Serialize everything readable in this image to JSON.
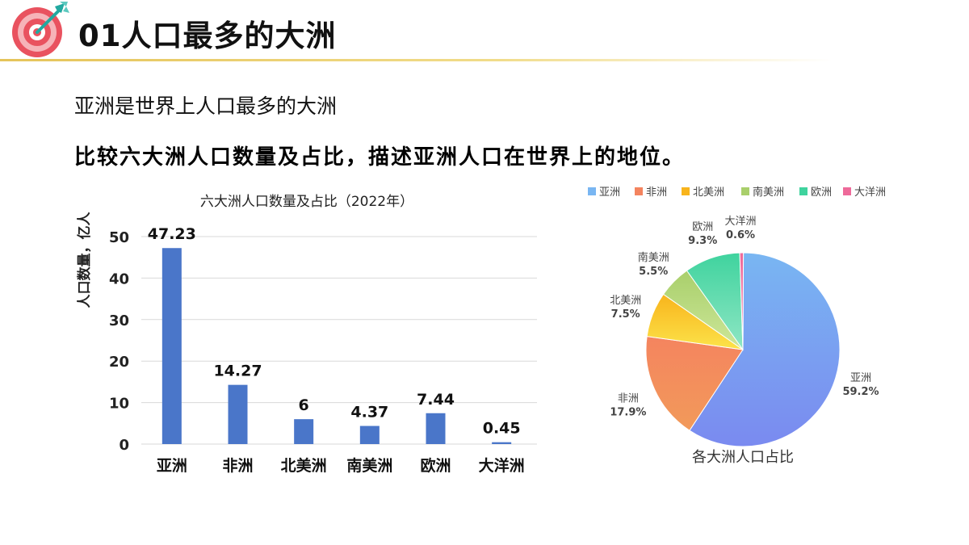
{
  "page": {
    "title": "01人口最多的大洲",
    "subtitle": "亚洲是世界上人口最多的大洲",
    "instruction": "比较六大洲人口数量及占比，描述亚洲人口在世界上的地位。"
  },
  "colors": {
    "bar": "#4a76c9",
    "header_rule": "#e5c45a",
    "target_red": "#e9525f",
    "target_pink": "#f6b3b8",
    "arrow": "#22a9a0"
  },
  "icons": {
    "header": "target-arrow-icon"
  },
  "chart_data": [
    {
      "type": "bar",
      "title": "六大洲人口数量及占比（2022年）",
      "xlabel": "",
      "ylabel": "人口数量，亿人",
      "categories": [
        "亚洲",
        "非洲",
        "北美洲",
        "南美洲",
        "欧洲",
        "大洋洲"
      ],
      "values": [
        47.23,
        14.27,
        6,
        4.37,
        7.44,
        0.45
      ],
      "value_labels": [
        "47.23",
        "14.27",
        "6",
        "4.37",
        "7.44",
        "0.45"
      ],
      "yticks": [
        "0",
        "10",
        "20",
        "30",
        "40",
        "50"
      ],
      "ylim": [
        0,
        50
      ],
      "grid": true
    },
    {
      "type": "pie",
      "title": "各大洲人口占比",
      "legend_position": "top",
      "categories": [
        "亚洲",
        "非洲",
        "北美洲",
        "南美洲",
        "欧洲",
        "大洋洲"
      ],
      "values": [
        59.2,
        17.9,
        7.5,
        5.5,
        9.3,
        0.6
      ],
      "value_labels": [
        "59.2%",
        "17.9%",
        "7.5%",
        "5.5%",
        "9.3%",
        "0.6%"
      ],
      "colors": [
        "#79b6f2",
        "#f4845f",
        "#f8b41c",
        "#a9cf6b",
        "#3fd39e",
        "#ee6a9a"
      ],
      "gradient_to": [
        "#7a8af0",
        "#f29a5a",
        "#fce34a",
        "#cde79a",
        "#8fe6c4",
        "#f290b6"
      ]
    }
  ]
}
